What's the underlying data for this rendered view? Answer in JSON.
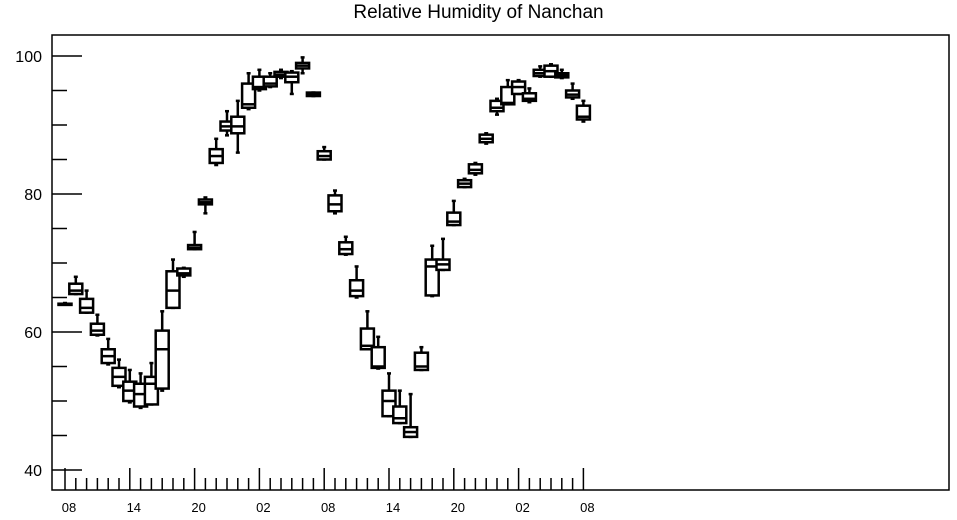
{
  "chart_data": {
    "type": "box",
    "title": "Relative Humidity of Nanchan",
    "xlabel": "",
    "ylabel": "",
    "ylim": [
      37,
      103
    ],
    "yticks": [
      40,
      60,
      80,
      100
    ],
    "xtick_labels": [
      "08",
      "14",
      "20",
      "02",
      "08",
      "14",
      "20",
      "02",
      "08"
    ],
    "grid": false,
    "colors": {
      "stroke": "#000000",
      "background": "#ffffff"
    },
    "boxes": [
      {
        "hour": 8,
        "whisker_low": 64.0,
        "q1": 64.0,
        "median": 64.0,
        "q3": 64.1,
        "whisker_high": 64.2
      },
      {
        "hour": 9,
        "whisker_low": 65.5,
        "q1": 65.5,
        "median": 66.0,
        "q3": 67.0,
        "whisker_high": 68.0
      },
      {
        "hour": 10,
        "whisker_low": 62.8,
        "q1": 62.8,
        "median": 63.5,
        "q3": 64.8,
        "whisker_high": 66.0
      },
      {
        "hour": 11,
        "whisker_low": 59.5,
        "q1": 59.6,
        "median": 60.2,
        "q3": 61.2,
        "whisker_high": 62.5
      },
      {
        "hour": 12,
        "whisker_low": 55.3,
        "q1": 55.5,
        "median": 56.5,
        "q3": 57.5,
        "whisker_high": 59.0
      },
      {
        "hour": 13,
        "whisker_low": 52.0,
        "q1": 52.2,
        "median": 53.5,
        "q3": 54.8,
        "whisker_high": 56.0
      },
      {
        "hour": 14,
        "whisker_low": 49.8,
        "q1": 50.0,
        "median": 51.5,
        "q3": 52.8,
        "whisker_high": 54.5
      },
      {
        "hour": 15,
        "whisker_low": 49.0,
        "q1": 49.2,
        "median": 51.0,
        "q3": 52.5,
        "whisker_high": 54.0
      },
      {
        "hour": 16,
        "whisker_low": 49.5,
        "q1": 49.5,
        "median": 52.5,
        "q3": 53.5,
        "whisker_high": 55.5
      },
      {
        "hour": 17,
        "whisker_low": 51.5,
        "q1": 51.8,
        "median": 57.5,
        "q3": 60.2,
        "whisker_high": 63.0
      },
      {
        "hour": 18,
        "whisker_low": 63.5,
        "q1": 63.5,
        "median": 66.0,
        "q3": 68.8,
        "whisker_high": 70.5
      },
      {
        "hour": 19,
        "whisker_low": 68.0,
        "q1": 68.2,
        "median": 68.5,
        "q3": 69.2,
        "whisker_high": 69.3
      },
      {
        "hour": 20,
        "whisker_low": 72.0,
        "q1": 72.0,
        "median": 72.2,
        "q3": 72.6,
        "whisker_high": 74.5
      },
      {
        "hour": 21,
        "whisker_low": 77.2,
        "q1": 78.5,
        "median": 78.8,
        "q3": 79.2,
        "whisker_high": 79.5
      },
      {
        "hour": 22,
        "whisker_low": 84.2,
        "q1": 84.5,
        "median": 85.5,
        "q3": 86.5,
        "whisker_high": 88.0
      },
      {
        "hour": 23,
        "whisker_low": 88.5,
        "q1": 89.2,
        "median": 89.8,
        "q3": 90.5,
        "whisker_high": 92.0
      },
      {
        "hour": 0,
        "whisker_low": 86.0,
        "q1": 88.8,
        "median": 89.8,
        "q3": 91.2,
        "whisker_high": 93.5
      },
      {
        "hour": 1,
        "whisker_low": 92.3,
        "q1": 92.5,
        "median": 93.0,
        "q3": 96.0,
        "whisker_high": 97.5
      },
      {
        "hour": 2,
        "whisker_low": 95.0,
        "q1": 95.2,
        "median": 95.5,
        "q3": 97.0,
        "whisker_high": 98.0
      },
      {
        "hour": 3,
        "whisker_low": 95.5,
        "q1": 95.6,
        "median": 96.0,
        "q3": 97.0,
        "whisker_high": 97.5
      },
      {
        "hour": 4,
        "whisker_low": 96.8,
        "q1": 97.0,
        "median": 97.3,
        "q3": 97.7,
        "whisker_high": 98.0
      },
      {
        "hour": 5,
        "whisker_low": 94.5,
        "q1": 96.2,
        "median": 97.0,
        "q3": 97.6,
        "whisker_high": 97.8
      },
      {
        "hour": 6,
        "whisker_low": 97.5,
        "q1": 98.2,
        "median": 98.6,
        "q3": 99.0,
        "whisker_high": 99.8
      },
      {
        "hour": 7,
        "whisker_low": 94.2,
        "q1": 94.2,
        "median": 94.4,
        "q3": 94.7,
        "whisker_high": 94.7
      },
      {
        "hour": 8,
        "whisker_low": 85.0,
        "q1": 85.0,
        "median": 85.5,
        "q3": 86.2,
        "whisker_high": 86.8
      },
      {
        "hour": 9,
        "whisker_low": 77.2,
        "q1": 77.5,
        "median": 78.5,
        "q3": 79.8,
        "whisker_high": 80.5
      },
      {
        "hour": 10,
        "whisker_low": 71.2,
        "q1": 71.3,
        "median": 72.0,
        "q3": 73.0,
        "whisker_high": 73.8
      },
      {
        "hour": 11,
        "whisker_low": 65.0,
        "q1": 65.2,
        "median": 66.0,
        "q3": 67.5,
        "whisker_high": 69.5
      },
      {
        "hour": 12,
        "whisker_low": 57.5,
        "q1": 57.5,
        "median": 58.0,
        "q3": 60.5,
        "whisker_high": 63.0
      },
      {
        "hour": 13,
        "whisker_low": 54.7,
        "q1": 54.8,
        "median": 55.0,
        "q3": 57.8,
        "whisker_high": 59.3
      },
      {
        "hour": 14,
        "whisker_low": 47.8,
        "q1": 47.8,
        "median": 50.0,
        "q3": 51.5,
        "whisker_high": 54.0
      },
      {
        "hour": 15,
        "whisker_low": 46.8,
        "q1": 46.8,
        "median": 47.5,
        "q3": 49.2,
        "whisker_high": 51.5
      },
      {
        "hour": 16,
        "whisker_low": 44.8,
        "q1": 44.8,
        "median": 45.5,
        "q3": 46.2,
        "whisker_high": 51.0
      },
      {
        "hour": 17,
        "whisker_low": 54.5,
        "q1": 54.5,
        "median": 55.0,
        "q3": 57.0,
        "whisker_high": 57.8
      },
      {
        "hour": 18,
        "whisker_low": 65.2,
        "q1": 65.3,
        "median": 69.5,
        "q3": 70.5,
        "whisker_high": 72.5
      },
      {
        "hour": 19,
        "whisker_low": 69.0,
        "q1": 69.0,
        "median": 69.8,
        "q3": 70.5,
        "whisker_high": 73.5
      },
      {
        "hour": 20,
        "whisker_low": 75.5,
        "q1": 75.5,
        "median": 76.0,
        "q3": 77.3,
        "whisker_high": 79.0
      },
      {
        "hour": 21,
        "whisker_low": 81.0,
        "q1": 81.0,
        "median": 81.5,
        "q3": 82.0,
        "whisker_high": 82.2
      },
      {
        "hour": 22,
        "whisker_low": 82.8,
        "q1": 83.0,
        "median": 83.5,
        "q3": 84.3,
        "whisker_high": 84.5
      },
      {
        "hour": 23,
        "whisker_low": 87.3,
        "q1": 87.5,
        "median": 88.0,
        "q3": 88.6,
        "whisker_high": 88.8
      },
      {
        "hour": 0,
        "whisker_low": 91.5,
        "q1": 92.0,
        "median": 92.5,
        "q3": 93.5,
        "whisker_high": 93.8
      },
      {
        "hour": 1,
        "whisker_low": 93.0,
        "q1": 93.0,
        "median": 93.2,
        "q3": 95.5,
        "whisker_high": 96.5
      },
      {
        "hour": 2,
        "whisker_low": 94.5,
        "q1": 94.5,
        "median": 95.5,
        "q3": 96.3,
        "whisker_high": 96.5
      },
      {
        "hour": 3,
        "whisker_low": 93.3,
        "q1": 93.5,
        "median": 93.8,
        "q3": 94.6,
        "whisker_high": 95.3
      },
      {
        "hour": 4,
        "whisker_low": 97.0,
        "q1": 97.1,
        "median": 97.5,
        "q3": 98.0,
        "whisker_high": 98.5
      },
      {
        "hour": 5,
        "whisker_low": 97.0,
        "q1": 97.0,
        "median": 97.8,
        "q3": 98.6,
        "whisker_high": 98.8
      },
      {
        "hour": 6,
        "whisker_low": 96.8,
        "q1": 96.9,
        "median": 97.2,
        "q3": 97.5,
        "whisker_high": 98.0
      },
      {
        "hour": 7,
        "whisker_low": 93.8,
        "q1": 94.0,
        "median": 94.4,
        "q3": 95.0,
        "whisker_high": 96.0
      },
      {
        "hour": 8,
        "whisker_low": 90.5,
        "q1": 90.8,
        "median": 91.2,
        "q3": 92.8,
        "whisker_high": 93.5
      }
    ]
  }
}
